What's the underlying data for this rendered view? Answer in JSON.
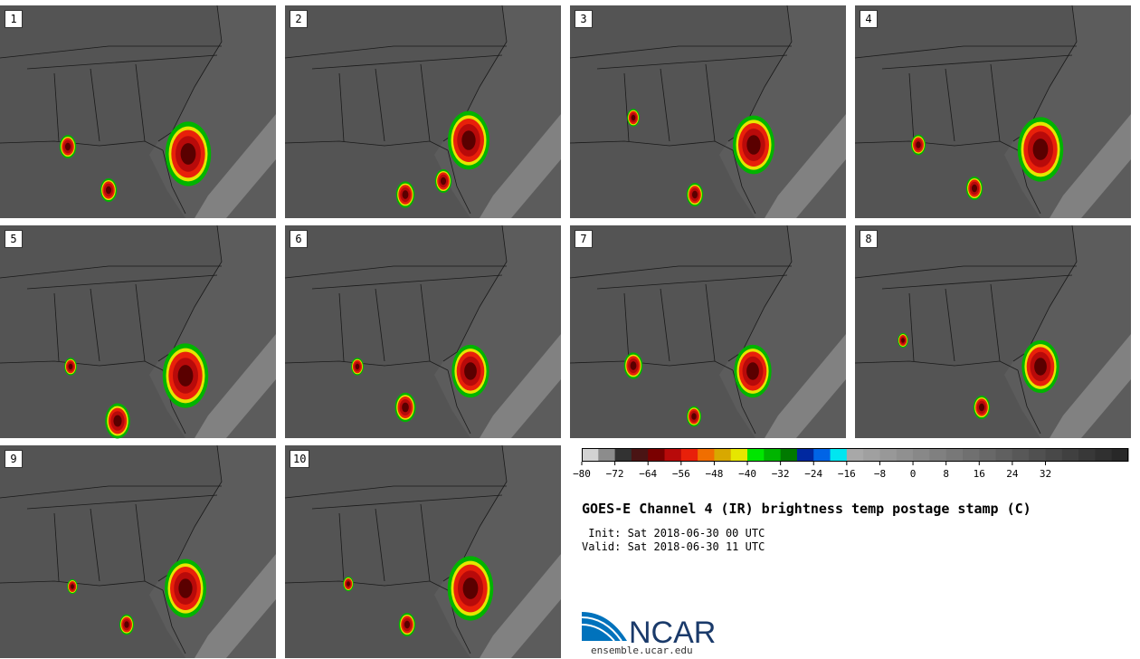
{
  "panels": [
    {
      "label": "1"
    },
    {
      "label": "2"
    },
    {
      "label": "3"
    },
    {
      "label": "4"
    },
    {
      "label": "5"
    },
    {
      "label": "6"
    },
    {
      "label": "7"
    },
    {
      "label": "8"
    },
    {
      "label": "9"
    },
    {
      "label": "10"
    }
  ],
  "colorbar": {
    "colors": [
      "#d3d3d3",
      "#8c8c8c",
      "#323232",
      "#4a1414",
      "#7a0000",
      "#b80a0a",
      "#e8200a",
      "#f06e00",
      "#d8a800",
      "#e6e600",
      "#00e600",
      "#00b400",
      "#007a00",
      "#0028a0",
      "#0064e6",
      "#00e6f0",
      "#a8a8a8",
      "#a0a0a0",
      "#989898",
      "#909090",
      "#888888",
      "#808080",
      "#787878",
      "#707070",
      "#686868",
      "#606060",
      "#585858",
      "#505050",
      "#484848",
      "#404040",
      "#383838",
      "#303030",
      "#282828"
    ],
    "ticks": [
      "−80",
      "−72",
      "−64",
      "−56",
      "−48",
      "−40",
      "−32",
      "−24",
      "−16",
      "−8",
      "0",
      "8",
      "16",
      "24",
      "32"
    ]
  },
  "title": "GOES-E Channel 4 (IR) brightness temp postage stamp (C)",
  "init": " Init: Sat 2018-06-30 00 UTC",
  "valid": "Valid: Sat 2018-06-30 11 UTC",
  "logo": {
    "text": "NCAR",
    "url": "ensemble.ucar.edu"
  }
}
